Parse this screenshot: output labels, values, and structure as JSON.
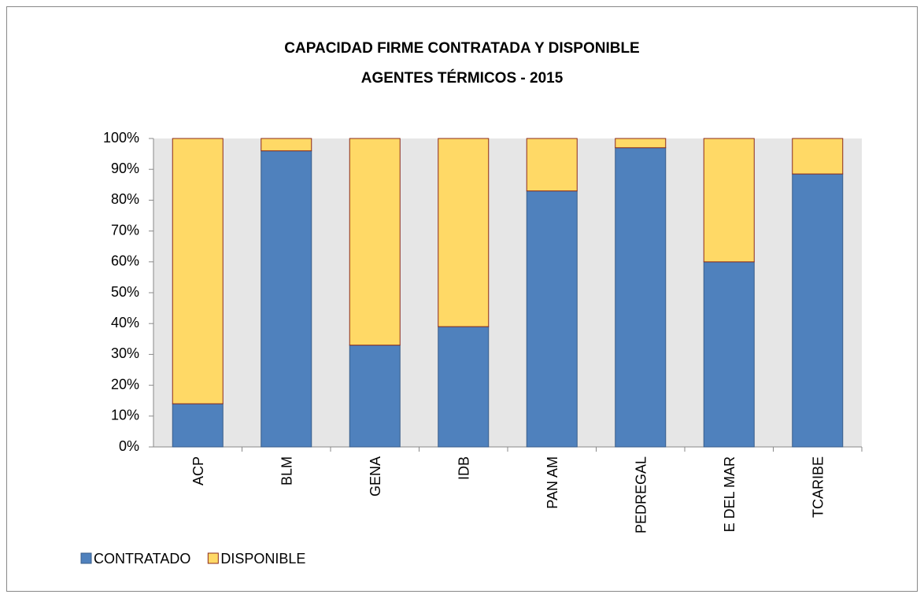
{
  "chart_data": {
    "type": "stacked_bar",
    "title": "CAPACIDAD FIRME CONTRATADA Y DISPONIBLE",
    "subtitle": "AGENTES TÉRMICOS - 2015",
    "categories": [
      "ACP",
      "BLM",
      "GENA",
      "IDB",
      "PAN AM",
      "PEDREGAL",
      "E DEL MAR",
      "TCARIBE"
    ],
    "series": [
      {
        "name": "CONTRATADO",
        "color": "#4f81bd",
        "values": [
          14,
          96,
          33,
          39,
          83,
          97,
          60,
          88.5
        ]
      },
      {
        "name": "DISPONIBLE",
        "color": "#ffd966",
        "values": [
          86,
          4,
          67,
          61,
          17,
          3,
          40,
          11.5
        ]
      }
    ],
    "ylim": [
      0,
      100
    ],
    "yticks": [
      {
        "value": 0,
        "label": "0%"
      },
      {
        "value": 10,
        "label": "10%"
      },
      {
        "value": 20,
        "label": "20%"
      },
      {
        "value": 30,
        "label": "30%"
      },
      {
        "value": 40,
        "label": "40%"
      },
      {
        "value": 50,
        "label": "50%"
      },
      {
        "value": 60,
        "label": "60%"
      },
      {
        "value": 70,
        "label": "70%"
      },
      {
        "value": 80,
        "label": "80%"
      },
      {
        "value": 90,
        "label": "90%"
      },
      {
        "value": 100,
        "label": "100%"
      }
    ],
    "grid": false,
    "legend": "bottom-left"
  }
}
